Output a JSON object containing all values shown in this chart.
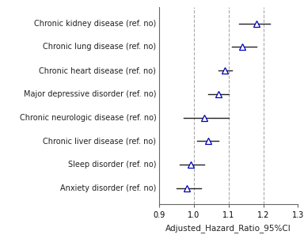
{
  "categories": [
    "Chronic kidney disease (ref. no)",
    "Chronic lung disease (ref. no)",
    "Chronic heart disease (ref. no)",
    "Major depressive disorder (ref. no)",
    "Chronic neurologic disease (ref. no)",
    "Chronic liver disease (ref. no)",
    "Sleep disorder (ref. no)",
    "Anxiety disorder (ref. no)"
  ],
  "estimates": [
    1.18,
    1.14,
    1.09,
    1.07,
    1.03,
    1.04,
    0.99,
    0.98
  ],
  "ci_lower": [
    1.13,
    1.11,
    1.07,
    1.04,
    0.97,
    1.01,
    0.96,
    0.95
  ],
  "ci_upper": [
    1.22,
    1.18,
    1.11,
    1.1,
    1.1,
    1.07,
    1.03,
    1.02
  ],
  "xlim": [
    0.9,
    1.3
  ],
  "xticks": [
    0.9,
    1.0,
    1.1,
    1.2,
    1.3
  ],
  "xlabel": "Adjusted_Hazard_Ratio_95%CI",
  "vlines": [
    1.0,
    1.1,
    1.2
  ],
  "marker_color": "#0000bb",
  "marker_facecolor": "white",
  "line_color": "#222222",
  "vline_style": "--",
  "vline_color": "#aaaaaa",
  "axis_line_color": "#666666",
  "label_fontsize": 7.0,
  "xlabel_fontsize": 7.5,
  "tick_fontsize": 7.0
}
